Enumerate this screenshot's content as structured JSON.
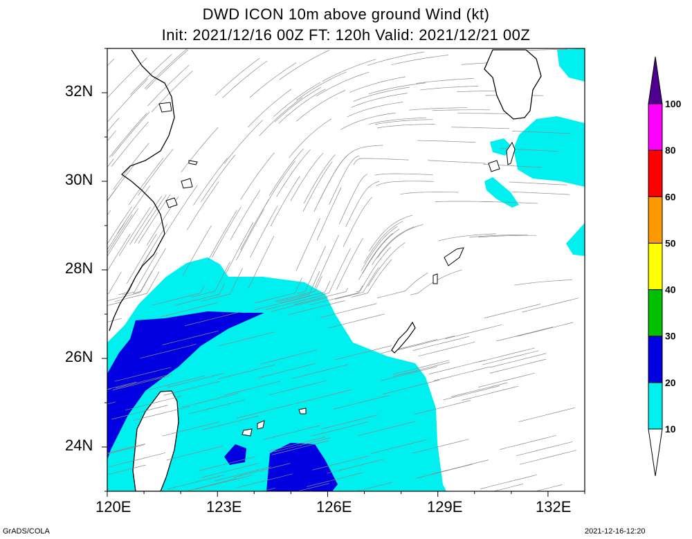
{
  "title": {
    "line1": "DWD ICON 10m above ground Wind (kt)",
    "line2": "Init: 2021/12/16 00Z  FT: 120h  Valid: 2021/12/21 00Z"
  },
  "axes": {
    "lon_ticks": [
      "120E",
      "123E",
      "126E",
      "129E",
      "132E"
    ],
    "lat_ticks": [
      "32N",
      "30N",
      "28N",
      "26N",
      "24N"
    ],
    "lon_range": [
      120,
      133
    ],
    "lat_range": [
      23,
      33
    ]
  },
  "colorbar": {
    "levels": [
      "10",
      "20",
      "30",
      "40",
      "50",
      "60",
      "80",
      "100"
    ],
    "colors": [
      "#00f0f0",
      "#0000e0",
      "#00c000",
      "#ffff00",
      "#ff9900",
      "#ff0000",
      "#ff00ff",
      "#a000c0",
      "#500090"
    ]
  },
  "footer": {
    "left": "GrADS/COLA",
    "right": "2021-12-16-12:20"
  }
}
